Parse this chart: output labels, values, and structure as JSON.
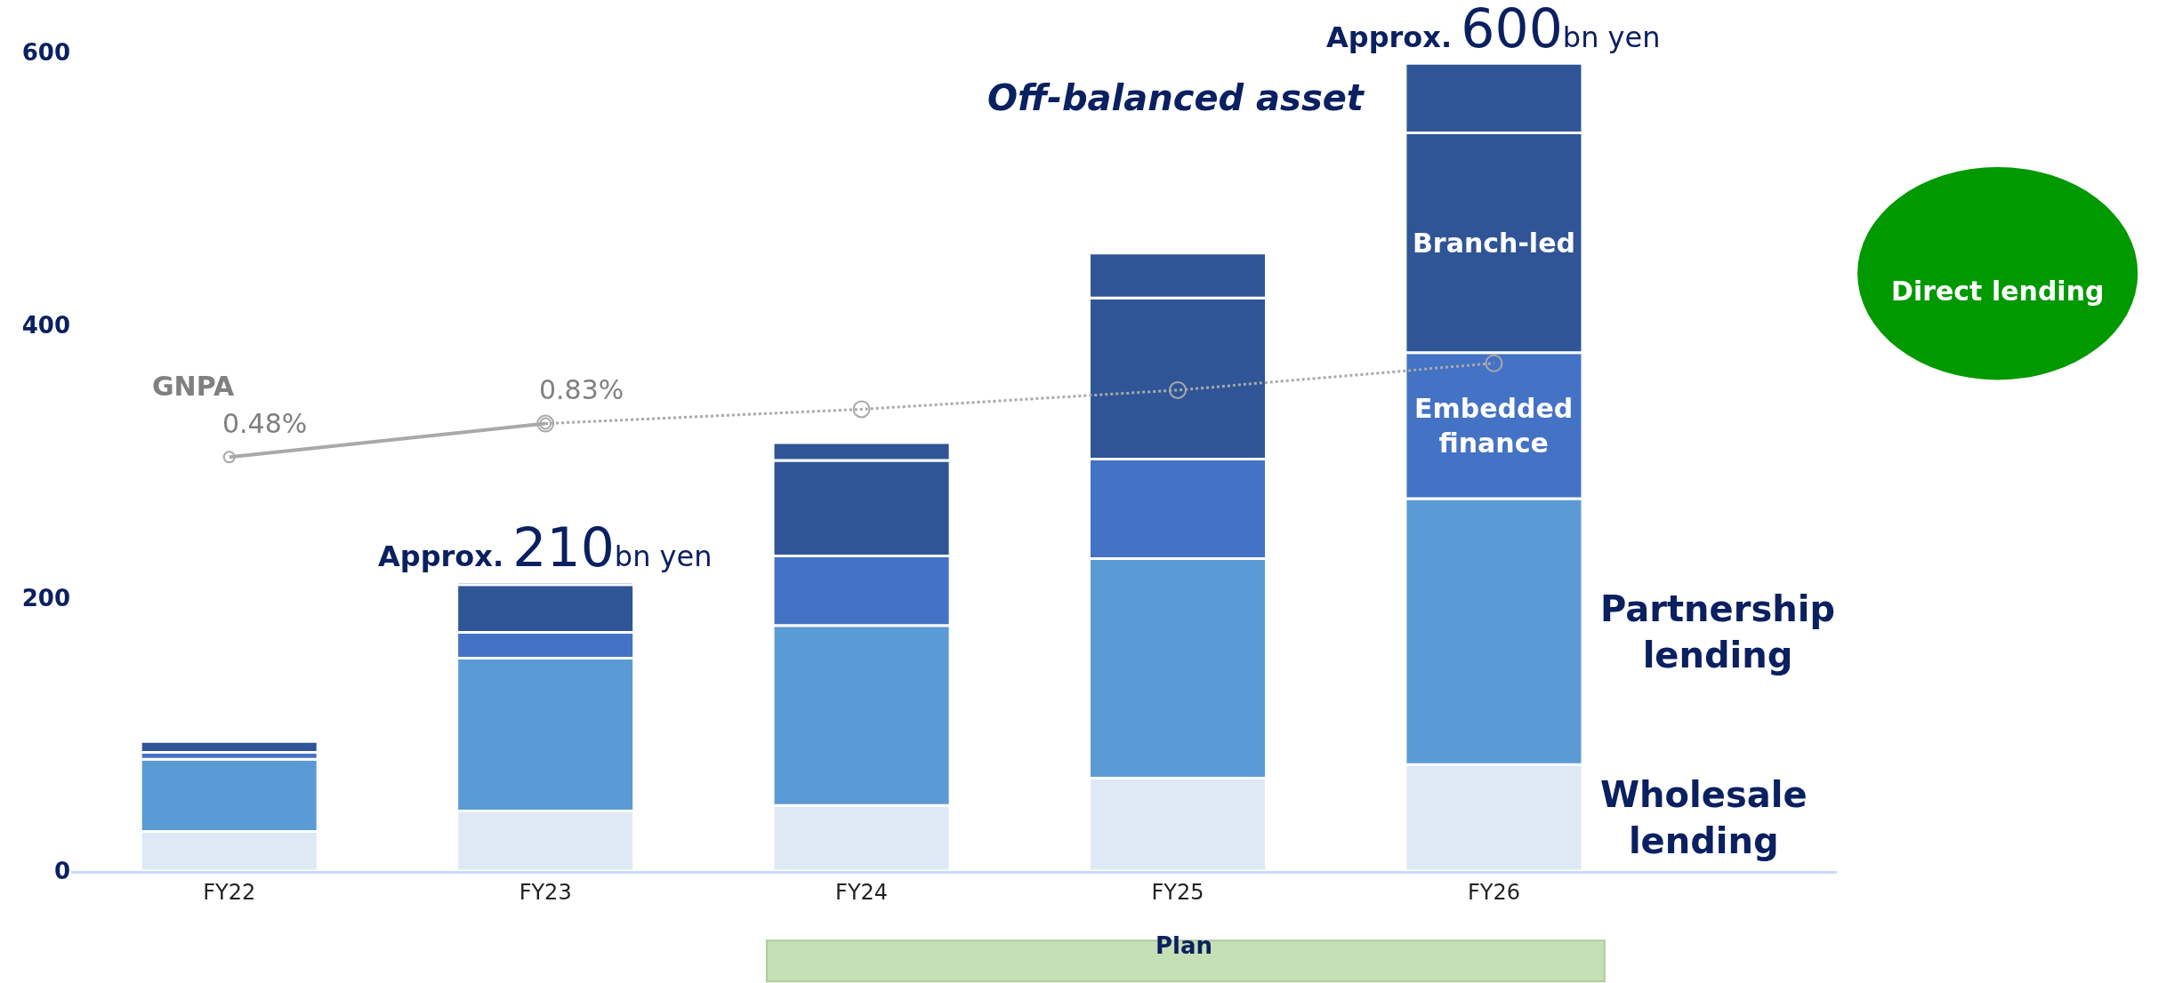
{
  "chart_data": {
    "type": "bar",
    "stacked": true,
    "categories": [
      "FY22",
      "FY23",
      "FY24",
      "FY25",
      "FY26"
    ],
    "series": [
      {
        "name": "Wholesale lending",
        "color": "#dee9f5",
        "values": [
          29,
          44,
          48,
          68,
          78
        ]
      },
      {
        "name": "Partnership lending",
        "color": "#5b9bd5",
        "values": [
          53,
          112,
          132,
          161,
          195
        ]
      },
      {
        "name": "Embedded finance",
        "color": "#4472c4",
        "values": [
          5,
          19,
          51,
          73,
          107
        ]
      },
      {
        "name": "Branch-led",
        "color": "#2f5597",
        "values": [
          8,
          35,
          70,
          118,
          161
        ]
      },
      {
        "name": "Off-balanced asset",
        "color": "#2f5597",
        "values": [
          0,
          2,
          13,
          33,
          51
        ]
      },
      {
        "name": "GNPA",
        "type": "line",
        "axis": "y2",
        "color": "#a9a9a9",
        "line_style": "solid",
        "marker": "circle",
        "values": [
          0.48,
          0.83,
          null,
          null,
          null
        ],
        "value_labels": [
          "0.48%",
          "0.83%",
          null,
          null,
          null
        ]
      },
      {
        "type": "line",
        "axis": "y2",
        "color": "#a9a9a9",
        "line_style": "dotted",
        "marker": "circle",
        "values": [
          null,
          0.83,
          0.98,
          1.18,
          1.46
        ]
      }
    ],
    "ylim": [
      0,
      600
    ],
    "yticks": [
      0,
      200,
      400,
      600
    ],
    "annotations": [
      "Direct lending",
      "Plan",
      {
        "text": "Approx. 210bn yen",
        "x": "FY23",
        "y": 212
      },
      {
        "text": "Approx. 600bn yen",
        "x": "FY26",
        "y": 592
      }
    ],
    "grid": false
  }
}
